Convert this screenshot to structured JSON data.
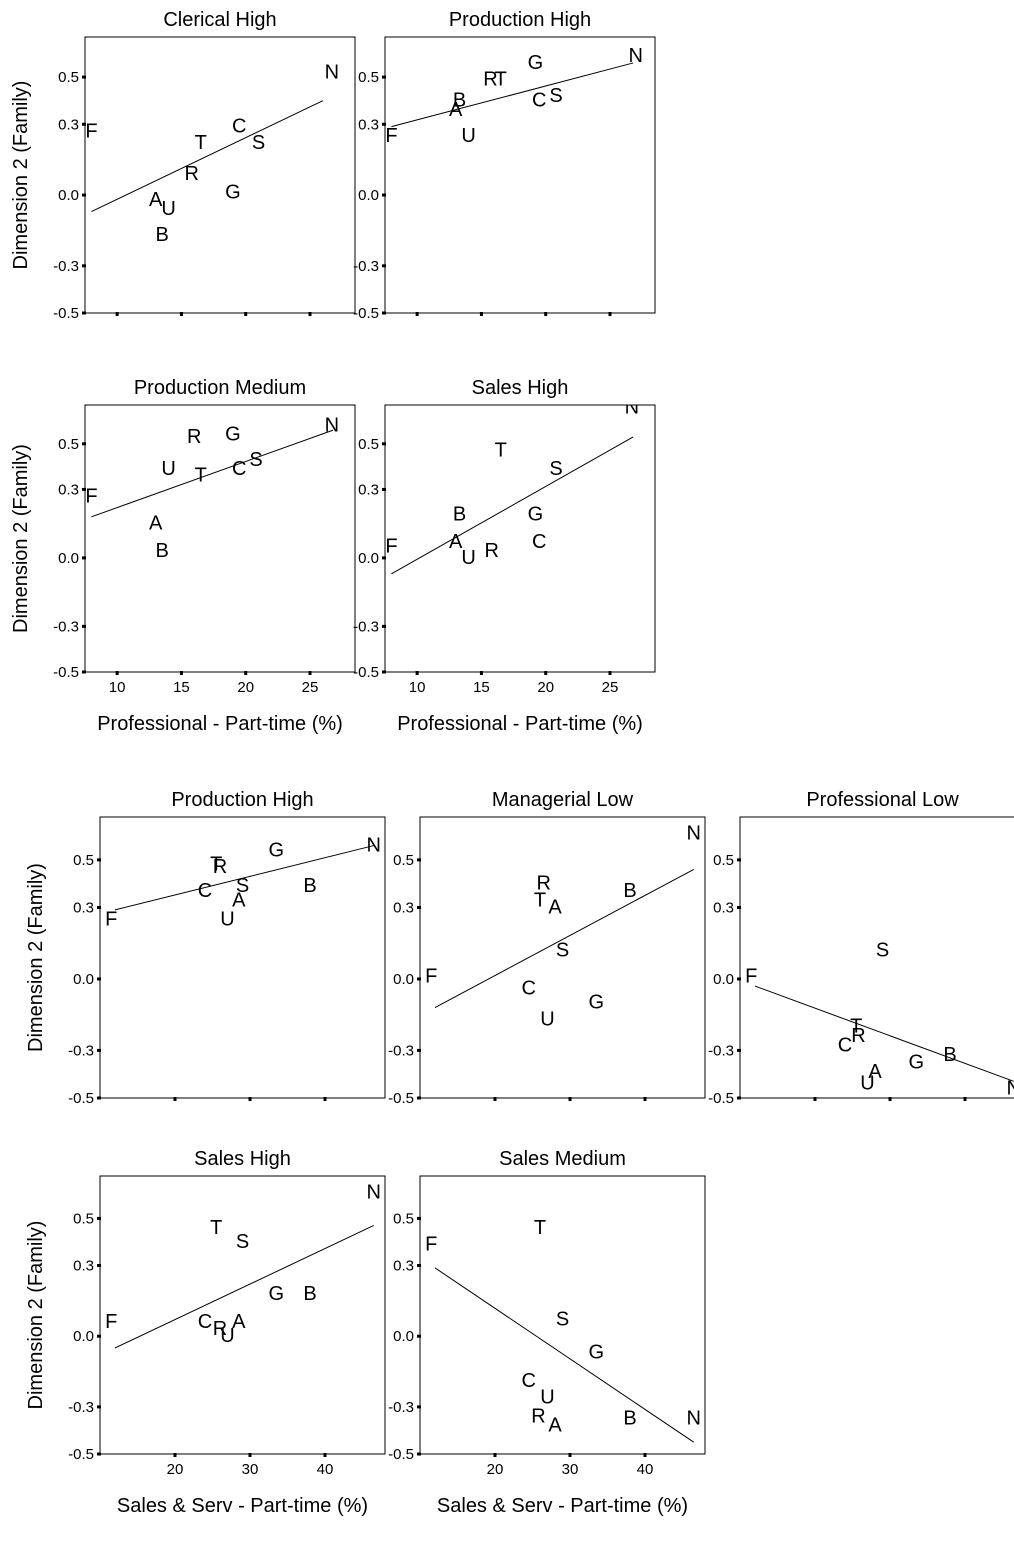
{
  "figure": {
    "y_axis_label": "Dimension 2 (Family)",
    "y_ticks": [
      "0.5",
      "0.3",
      "0.0",
      "-0.3",
      "-0.5"
    ],
    "groups": [
      {
        "x_axis_label": "Professional - Part-time (%)",
        "x_ticks": [
          "10",
          "15",
          "20",
          "25"
        ]
      },
      {
        "x_axis_label": "Sales & Serv - Part-time (%)",
        "x_ticks": [
          "20",
          "30",
          "40"
        ]
      }
    ]
  },
  "chart_data": [
    {
      "type": "scatter",
      "title": "Clerical High",
      "group": 0,
      "xlim": [
        7.5,
        28.5
      ],
      "ylim": [
        -0.5,
        0.67
      ],
      "show_x_tick_labels": false,
      "show_y_label": true,
      "points": [
        {
          "label": "F",
          "x": 8.0,
          "y": 0.27
        },
        {
          "label": "T",
          "x": 16.5,
          "y": 0.22
        },
        {
          "label": "C",
          "x": 19.5,
          "y": 0.29
        },
        {
          "label": "S",
          "x": 21.0,
          "y": 0.22
        },
        {
          "label": "R",
          "x": 15.8,
          "y": 0.09
        },
        {
          "label": "A",
          "x": 13.0,
          "y": -0.02
        },
        {
          "label": "U",
          "x": 14.0,
          "y": -0.06
        },
        {
          "label": "B",
          "x": 13.5,
          "y": -0.17
        },
        {
          "label": "G",
          "x": 19.0,
          "y": 0.01
        },
        {
          "label": "N",
          "x": 26.7,
          "y": 0.52
        }
      ],
      "fit": {
        "x": [
          8.0,
          26.0
        ],
        "y": [
          -0.07,
          0.4
        ]
      }
    },
    {
      "type": "scatter",
      "title": "Production High",
      "group": 0,
      "xlim": [
        7.5,
        28.5
      ],
      "ylim": [
        -0.5,
        0.67
      ],
      "show_x_tick_labels": false,
      "show_y_label": false,
      "points": [
        {
          "label": "F",
          "x": 8.0,
          "y": 0.25
        },
        {
          "label": "B",
          "x": 13.3,
          "y": 0.4
        },
        {
          "label": "A",
          "x": 13.0,
          "y": 0.36
        },
        {
          "label": "U",
          "x": 14.0,
          "y": 0.25
        },
        {
          "label": "R",
          "x": 15.7,
          "y": 0.49
        },
        {
          "label": "T",
          "x": 16.5,
          "y": 0.49
        },
        {
          "label": "G",
          "x": 19.2,
          "y": 0.56
        },
        {
          "label": "C",
          "x": 19.5,
          "y": 0.4
        },
        {
          "label": "S",
          "x": 20.8,
          "y": 0.42
        },
        {
          "label": "N",
          "x": 27.0,
          "y": 0.59
        }
      ],
      "fit": {
        "x": [
          8.0,
          26.8
        ],
        "y": [
          0.29,
          0.56
        ]
      }
    },
    {
      "type": "scatter",
      "title": "Production Medium",
      "group": 0,
      "xlim": [
        7.5,
        28.5
      ],
      "ylim": [
        -0.5,
        0.67
      ],
      "show_x_tick_labels": true,
      "show_y_label": true,
      "points": [
        {
          "label": "F",
          "x": 8.0,
          "y": 0.27
        },
        {
          "label": "R",
          "x": 16.0,
          "y": 0.53
        },
        {
          "label": "G",
          "x": 19.0,
          "y": 0.54
        },
        {
          "label": "N",
          "x": 26.7,
          "y": 0.58
        },
        {
          "label": "U",
          "x": 14.0,
          "y": 0.39
        },
        {
          "label": "T",
          "x": 16.5,
          "y": 0.36
        },
        {
          "label": "C",
          "x": 19.5,
          "y": 0.39
        },
        {
          "label": "S",
          "x": 20.8,
          "y": 0.43
        },
        {
          "label": "A",
          "x": 13.0,
          "y": 0.15
        },
        {
          "label": "B",
          "x": 13.5,
          "y": 0.03
        }
      ],
      "fit": {
        "x": [
          8.0,
          26.8
        ],
        "y": [
          0.18,
          0.56
        ]
      }
    },
    {
      "type": "scatter",
      "title": "Sales High",
      "group": 0,
      "xlim": [
        7.5,
        28.5
      ],
      "ylim": [
        -0.5,
        0.67
      ],
      "show_x_tick_labels": true,
      "show_y_label": false,
      "points": [
        {
          "label": "N",
          "x": 26.7,
          "y": 0.66
        },
        {
          "label": "T",
          "x": 16.5,
          "y": 0.47
        },
        {
          "label": "S",
          "x": 20.8,
          "y": 0.39
        },
        {
          "label": "B",
          "x": 13.3,
          "y": 0.19
        },
        {
          "label": "G",
          "x": 19.2,
          "y": 0.19
        },
        {
          "label": "F",
          "x": 8.0,
          "y": 0.05
        },
        {
          "label": "A",
          "x": 13.0,
          "y": 0.07
        },
        {
          "label": "C",
          "x": 19.5,
          "y": 0.07
        },
        {
          "label": "R",
          "x": 15.8,
          "y": 0.03
        },
        {
          "label": "U",
          "x": 14.0,
          "y": 0.0
        }
      ],
      "fit": {
        "x": [
          8.0,
          26.8
        ],
        "y": [
          -0.07,
          0.53
        ]
      }
    },
    {
      "type": "scatter",
      "title": "Production High",
      "group": 1,
      "xlim": [
        10,
        48
      ],
      "ylim": [
        -0.5,
        0.68
      ],
      "show_x_tick_labels": false,
      "show_y_label": true,
      "points": [
        {
          "label": "F",
          "x": 11.5,
          "y": 0.25
        },
        {
          "label": "T",
          "x": 25.5,
          "y": 0.48
        },
        {
          "label": "R",
          "x": 26.0,
          "y": 0.47
        },
        {
          "label": "G",
          "x": 33.5,
          "y": 0.54
        },
        {
          "label": "N",
          "x": 46.5,
          "y": 0.56
        },
        {
          "label": "C",
          "x": 24.0,
          "y": 0.37
        },
        {
          "label": "S",
          "x": 29.0,
          "y": 0.39
        },
        {
          "label": "A",
          "x": 28.5,
          "y": 0.33
        },
        {
          "label": "B",
          "x": 38.0,
          "y": 0.39
        },
        {
          "label": "U",
          "x": 27.0,
          "y": 0.25
        }
      ],
      "fit": {
        "x": [
          12.0,
          46.5
        ],
        "y": [
          0.29,
          0.56
        ]
      }
    },
    {
      "type": "scatter",
      "title": "Managerial Low",
      "group": 1,
      "xlim": [
        10,
        48
      ],
      "ylim": [
        -0.5,
        0.68
      ],
      "show_x_tick_labels": false,
      "show_y_label": false,
      "points": [
        {
          "label": "N",
          "x": 46.5,
          "y": 0.61
        },
        {
          "label": "R",
          "x": 26.5,
          "y": 0.4
        },
        {
          "label": "T",
          "x": 26.0,
          "y": 0.33
        },
        {
          "label": "A",
          "x": 28.0,
          "y": 0.3
        },
        {
          "label": "B",
          "x": 38.0,
          "y": 0.37
        },
        {
          "label": "F",
          "x": 11.5,
          "y": 0.01
        },
        {
          "label": "S",
          "x": 29.0,
          "y": 0.12
        },
        {
          "label": "C",
          "x": 24.5,
          "y": -0.04
        },
        {
          "label": "G",
          "x": 33.5,
          "y": -0.1
        },
        {
          "label": "U",
          "x": 27.0,
          "y": -0.17
        }
      ],
      "fit": {
        "x": [
          12.0,
          46.5
        ],
        "y": [
          -0.12,
          0.46
        ]
      }
    },
    {
      "type": "scatter",
      "title": "Professional Low",
      "group": 1,
      "xlim": [
        10,
        48
      ],
      "ylim": [
        -0.5,
        0.68
      ],
      "show_x_tick_labels": false,
      "show_y_label": false,
      "points": [
        {
          "label": "S",
          "x": 29.0,
          "y": 0.12
        },
        {
          "label": "F",
          "x": 11.5,
          "y": 0.01
        },
        {
          "label": "T",
          "x": 25.5,
          "y": -0.2
        },
        {
          "label": "R",
          "x": 25.8,
          "y": -0.24
        },
        {
          "label": "C",
          "x": 24.0,
          "y": -0.28
        },
        {
          "label": "A",
          "x": 28.0,
          "y": -0.39
        },
        {
          "label": "G",
          "x": 33.5,
          "y": -0.35
        },
        {
          "label": "B",
          "x": 38.0,
          "y": -0.32
        },
        {
          "label": "U",
          "x": 27.0,
          "y": -0.44
        },
        {
          "label": "N",
          "x": 46.5,
          "y": -0.46
        }
      ],
      "fit": {
        "x": [
          12.0,
          46.5
        ],
        "y": [
          -0.03,
          -0.43
        ]
      }
    },
    {
      "type": "scatter",
      "title": "Sales High",
      "group": 1,
      "xlim": [
        10,
        48
      ],
      "ylim": [
        -0.5,
        0.68
      ],
      "show_x_tick_labels": true,
      "show_y_label": true,
      "points": [
        {
          "label": "N",
          "x": 46.5,
          "y": 0.61
        },
        {
          "label": "T",
          "x": 25.5,
          "y": 0.46
        },
        {
          "label": "S",
          "x": 29.0,
          "y": 0.4
        },
        {
          "label": "G",
          "x": 33.5,
          "y": 0.18
        },
        {
          "label": "B",
          "x": 38.0,
          "y": 0.18
        },
        {
          "label": "F",
          "x": 11.5,
          "y": 0.06
        },
        {
          "label": "C",
          "x": 24.0,
          "y": 0.06
        },
        {
          "label": "A",
          "x": 28.5,
          "y": 0.06
        },
        {
          "label": "R",
          "x": 26.0,
          "y": 0.03
        },
        {
          "label": "U",
          "x": 27.0,
          "y": 0.0
        }
      ],
      "fit": {
        "x": [
          12.0,
          46.5
        ],
        "y": [
          -0.05,
          0.47
        ]
      }
    },
    {
      "type": "scatter",
      "title": "Sales Medium",
      "group": 1,
      "xlim": [
        10,
        48
      ],
      "ylim": [
        -0.5,
        0.68
      ],
      "show_x_tick_labels": true,
      "show_y_label": false,
      "points": [
        {
          "label": "T",
          "x": 26.0,
          "y": 0.46
        },
        {
          "label": "F",
          "x": 11.5,
          "y": 0.39
        },
        {
          "label": "S",
          "x": 29.0,
          "y": 0.07
        },
        {
          "label": "G",
          "x": 33.5,
          "y": -0.07
        },
        {
          "label": "C",
          "x": 24.5,
          "y": -0.19
        },
        {
          "label": "U",
          "x": 27.0,
          "y": -0.26
        },
        {
          "label": "R",
          "x": 25.8,
          "y": -0.34
        },
        {
          "label": "A",
          "x": 28.0,
          "y": -0.38
        },
        {
          "label": "B",
          "x": 38.0,
          "y": -0.35
        },
        {
          "label": "N",
          "x": 46.5,
          "y": -0.35
        }
      ],
      "fit": {
        "x": [
          12.0,
          46.5
        ],
        "y": [
          0.29,
          -0.45
        ]
      }
    }
  ]
}
